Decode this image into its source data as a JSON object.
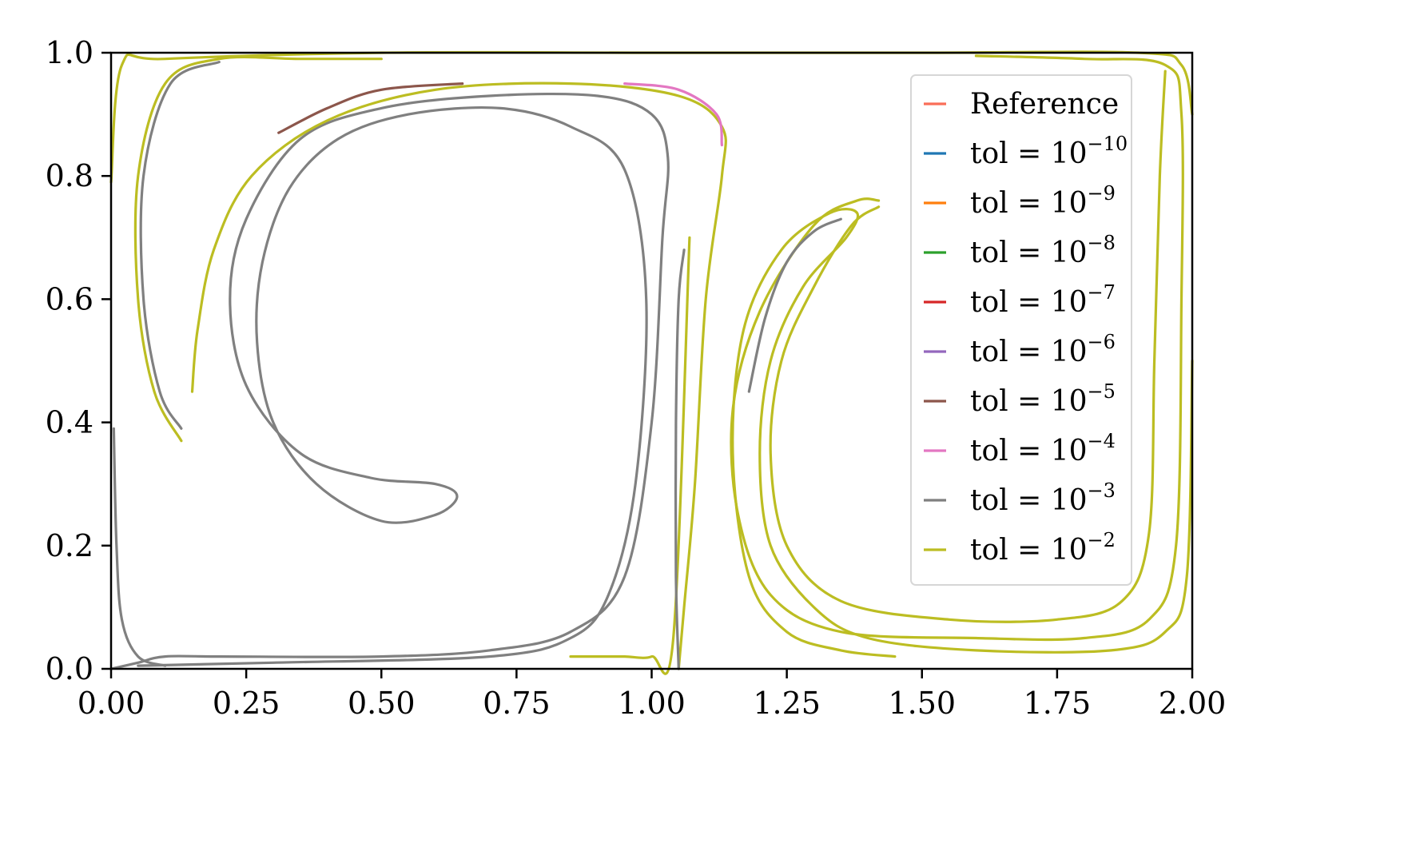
{
  "chart_data": {
    "type": "line",
    "title": "",
    "xlabel": "",
    "ylabel": "",
    "xlim": [
      0,
      2
    ],
    "ylim": [
      0,
      1
    ],
    "x_ticks": [
      "0.00",
      "0.25",
      "0.50",
      "0.75",
      "1.00",
      "1.25",
      "1.50",
      "1.75",
      "2.00"
    ],
    "y_ticks": [
      "0.0",
      "0.2",
      "0.4",
      "0.6",
      "0.8",
      "1.0"
    ],
    "grid": false,
    "legend_position": "top-right",
    "legend": [
      {
        "label": "Reference",
        "base": "Reference",
        "exp": "",
        "color": "#fa6e58"
      },
      {
        "label": "tol = 10^-10",
        "base": "tol = 10",
        "exp": "−10",
        "color": "#1f77b4"
      },
      {
        "label": "tol = 10^-9",
        "base": "tol = 10",
        "exp": "−9",
        "color": "#ff7f0e"
      },
      {
        "label": "tol = 10^-8",
        "base": "tol = 10",
        "exp": "−8",
        "color": "#2ca02c"
      },
      {
        "label": "tol = 10^-7",
        "base": "tol = 10",
        "exp": "−7",
        "color": "#d62728"
      },
      {
        "label": "tol = 10^-6",
        "base": "tol = 10",
        "exp": "−6",
        "color": "#9467bd"
      },
      {
        "label": "tol = 10^-5",
        "base": "tol = 10",
        "exp": "−5",
        "color": "#8c564b"
      },
      {
        "label": "tol = 10^-4",
        "base": "tol = 10",
        "exp": "−4",
        "color": "#e377c2"
      },
      {
        "label": "tol = 10^-3",
        "base": "tol = 10",
        "exp": "−3",
        "color": "#7f7f7f"
      },
      {
        "label": "tol = 10^-2",
        "base": "tol = 10",
        "exp": "−2",
        "color": "#bcbd22"
      }
    ],
    "series": [
      {
        "color": "#808080",
        "points": [
          [
            0.0,
            0.0
          ],
          [
            0.05,
            0.01
          ],
          [
            0.1,
            0.02
          ],
          [
            0.2,
            0.02
          ],
          [
            0.5,
            0.02
          ],
          [
            0.7,
            0.03
          ],
          [
            0.85,
            0.06
          ],
          [
            0.95,
            0.15
          ],
          [
            1.0,
            0.4
          ],
          [
            1.02,
            0.7
          ],
          [
            1.03,
            0.83
          ],
          [
            1.0,
            0.9
          ],
          [
            0.9,
            0.93
          ],
          [
            0.7,
            0.93
          ],
          [
            0.5,
            0.91
          ],
          [
            0.35,
            0.86
          ],
          [
            0.25,
            0.73
          ],
          [
            0.22,
            0.6
          ],
          [
            0.25,
            0.46
          ],
          [
            0.35,
            0.35
          ],
          [
            0.48,
            0.31
          ],
          [
            0.6,
            0.3
          ],
          [
            0.64,
            0.28
          ],
          [
            0.6,
            0.25
          ],
          [
            0.5,
            0.24
          ],
          [
            0.38,
            0.3
          ],
          [
            0.3,
            0.4
          ],
          [
            0.27,
            0.53
          ],
          [
            0.28,
            0.66
          ],
          [
            0.33,
            0.78
          ],
          [
            0.42,
            0.86
          ],
          [
            0.55,
            0.9
          ],
          [
            0.72,
            0.91
          ],
          [
            0.85,
            0.88
          ],
          [
            0.95,
            0.81
          ],
          [
            0.99,
            0.6
          ],
          [
            0.97,
            0.3
          ],
          [
            0.92,
            0.12
          ],
          [
            0.85,
            0.05
          ],
          [
            0.7,
            0.02
          ],
          [
            0.3,
            0.01
          ],
          [
            0.05,
            0.005
          ]
        ]
      },
      {
        "color": "#bcbd22",
        "points": [
          [
            0.0,
            0.79
          ],
          [
            0.02,
            0.98
          ],
          [
            0.1,
            0.99
          ],
          [
            0.5,
            1.0
          ],
          [
            1.0,
            1.0
          ],
          [
            1.5,
            1.0
          ],
          [
            1.9,
            1.0
          ],
          [
            1.98,
            0.98
          ],
          [
            2.0,
            0.9
          ]
        ]
      },
      {
        "color": "#bcbd22",
        "points": [
          [
            0.15,
            0.45
          ],
          [
            0.16,
            0.55
          ],
          [
            0.19,
            0.68
          ],
          [
            0.26,
            0.8
          ],
          [
            0.4,
            0.89
          ],
          [
            0.6,
            0.94
          ],
          [
            0.85,
            0.95
          ],
          [
            1.05,
            0.93
          ],
          [
            1.13,
            0.88
          ],
          [
            1.13,
            0.8
          ],
          [
            1.1,
            0.6
          ],
          [
            1.08,
            0.3
          ],
          [
            1.06,
            0.1
          ],
          [
            1.05,
            0.0
          ]
        ]
      },
      {
        "color": "#bcbd22",
        "points": [
          [
            0.85,
            0.02
          ],
          [
            0.9,
            0.02
          ],
          [
            0.95,
            0.02
          ],
          [
            1.0,
            0.02
          ],
          [
            1.04,
            0.05
          ],
          [
            1.07,
            0.7
          ]
        ]
      },
      {
        "color": "#bcbd22",
        "points": [
          [
            0.13,
            0.37
          ],
          [
            0.08,
            0.45
          ],
          [
            0.05,
            0.6
          ],
          [
            0.05,
            0.8
          ],
          [
            0.1,
            0.95
          ],
          [
            0.2,
            0.99
          ],
          [
            0.35,
            0.99
          ],
          [
            0.5,
            0.99
          ]
        ]
      },
      {
        "color": "#808080",
        "points": [
          [
            0.13,
            0.39
          ],
          [
            0.09,
            0.45
          ],
          [
            0.06,
            0.6
          ],
          [
            0.06,
            0.8
          ],
          [
            0.11,
            0.95
          ],
          [
            0.2,
            0.985
          ]
        ]
      },
      {
        "color": "#bcbd22",
        "points": [
          [
            1.42,
            0.76
          ],
          [
            1.38,
            0.76
          ],
          [
            1.3,
            0.72
          ],
          [
            1.2,
            0.58
          ],
          [
            1.15,
            0.42
          ],
          [
            1.16,
            0.25
          ],
          [
            1.22,
            0.12
          ],
          [
            1.35,
            0.06
          ],
          [
            1.6,
            0.05
          ],
          [
            1.8,
            0.05
          ],
          [
            1.92,
            0.08
          ],
          [
            1.97,
            0.2
          ],
          [
            1.98,
            0.6
          ],
          [
            1.98,
            0.9
          ],
          [
            1.95,
            0.98
          ],
          [
            1.8,
            0.99
          ],
          [
            1.6,
            0.995
          ]
        ]
      },
      {
        "color": "#bcbd22",
        "points": [
          [
            1.42,
            0.75
          ],
          [
            1.37,
            0.72
          ],
          [
            1.3,
            0.62
          ],
          [
            1.24,
            0.5
          ],
          [
            1.22,
            0.35
          ],
          [
            1.25,
            0.2
          ],
          [
            1.35,
            0.11
          ],
          [
            1.55,
            0.08
          ],
          [
            1.75,
            0.08
          ],
          [
            1.87,
            0.11
          ],
          [
            1.92,
            0.22
          ],
          [
            1.93,
            0.5
          ],
          [
            1.94,
            0.8
          ],
          [
            1.95,
            0.97
          ]
        ]
      },
      {
        "color": "#bcbd22",
        "points": [
          [
            1.45,
            0.02
          ],
          [
            1.35,
            0.03
          ],
          [
            1.25,
            0.06
          ],
          [
            1.18,
            0.15
          ],
          [
            1.15,
            0.35
          ],
          [
            1.17,
            0.55
          ],
          [
            1.24,
            0.68
          ],
          [
            1.33,
            0.74
          ],
          [
            1.38,
            0.74
          ],
          [
            1.36,
            0.7
          ],
          [
            1.28,
            0.62
          ],
          [
            1.22,
            0.5
          ],
          [
            1.2,
            0.35
          ],
          [
            1.22,
            0.2
          ],
          [
            1.3,
            0.1
          ],
          [
            1.4,
            0.05
          ],
          [
            1.6,
            0.03
          ],
          [
            1.85,
            0.03
          ],
          [
            1.95,
            0.06
          ],
          [
            1.99,
            0.15
          ],
          [
            2.0,
            0.5
          ]
        ]
      },
      {
        "color": "#808080",
        "points": [
          [
            1.35,
            0.73
          ],
          [
            1.3,
            0.71
          ],
          [
            1.25,
            0.66
          ],
          [
            1.21,
            0.57
          ],
          [
            1.18,
            0.45
          ]
        ]
      },
      {
        "color": "#808080",
        "points": [
          [
            0.005,
            0.39
          ],
          [
            0.01,
            0.2
          ],
          [
            0.02,
            0.08
          ],
          [
            0.05,
            0.02
          ],
          [
            0.1,
            0.005
          ]
        ]
      },
      {
        "color": "#808080",
        "points": [
          [
            1.05,
            0.0
          ],
          [
            1.045,
            0.15
          ],
          [
            1.045,
            0.4
          ],
          [
            1.05,
            0.6
          ],
          [
            1.06,
            0.68
          ]
        ]
      },
      {
        "color": "#8c564b",
        "points": [
          [
            0.31,
            0.87
          ],
          [
            0.4,
            0.91
          ],
          [
            0.5,
            0.94
          ],
          [
            0.65,
            0.95
          ]
        ]
      },
      {
        "color": "#e377c2",
        "points": [
          [
            0.95,
            0.95
          ],
          [
            1.05,
            0.94
          ],
          [
            1.12,
            0.9
          ],
          [
            1.13,
            0.85
          ]
        ]
      }
    ]
  }
}
